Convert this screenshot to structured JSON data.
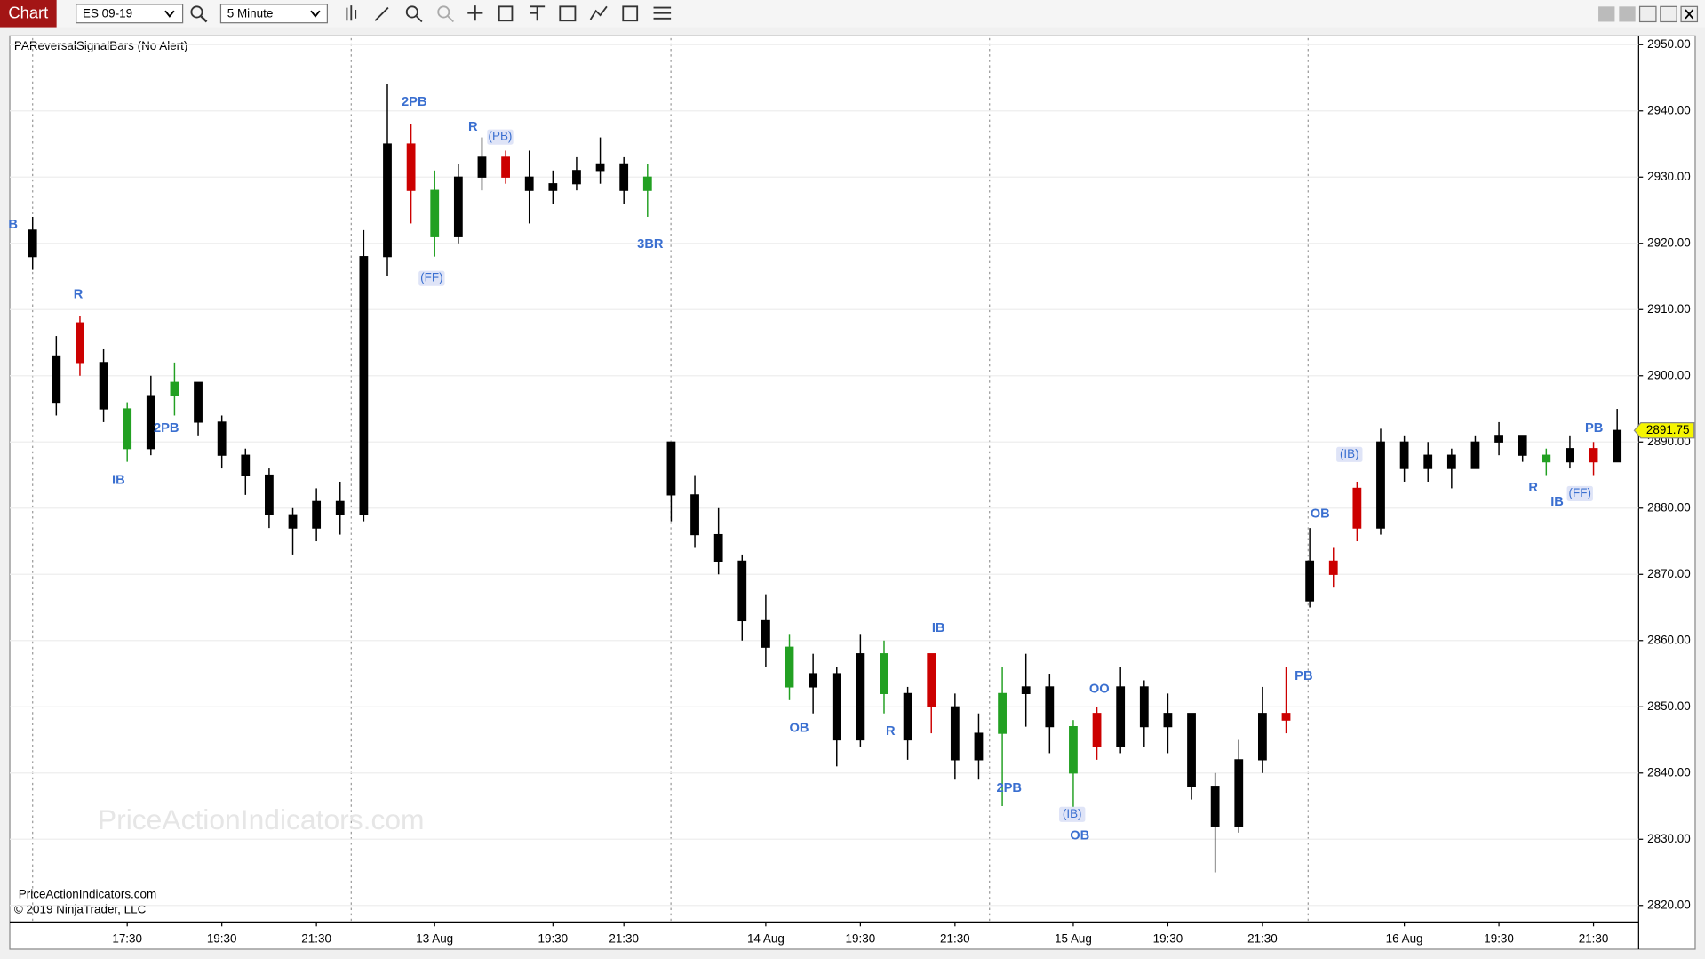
{
  "chart_data": {
    "type": "candlestick",
    "window_title": "Chart",
    "instrument": "ES 09-19",
    "interval": "5 Minute",
    "title": "PAReversalSignalBars (No Alert)",
    "categories": [
      null,
      null,
      null,
      null,
      "17:30",
      null,
      null,
      null,
      "19:30",
      null,
      null,
      null,
      "21:30",
      null,
      null,
      null,
      null,
      "13 Aug",
      null,
      null,
      null,
      null,
      "19:30",
      null,
      null,
      "21:30",
      null,
      null,
      null,
      null,
      null,
      "14 Aug",
      null,
      null,
      null,
      "19:30",
      null,
      null,
      null,
      "21:30",
      null,
      null,
      null,
      null,
      "15 Aug",
      null,
      null,
      null,
      "19:30",
      null,
      null,
      null,
      "21:30",
      null,
      null,
      null,
      null,
      null,
      "16 Aug",
      null,
      null,
      null,
      "19:30",
      null,
      null,
      null,
      "21:30",
      null
    ],
    "open": [
      2922,
      2903,
      2908,
      2902,
      2895,
      2889,
      2897,
      2899,
      2893,
      2888,
      2885,
      2879,
      2877,
      2881,
      2879,
      2918,
      2935,
      2928,
      2921,
      2930,
      2933,
      2930,
      2928,
      2929,
      2931,
      2932,
      2928,
      2890,
      2882,
      2876,
      2872,
      2863,
      2859,
      2853,
      2855,
      2845,
      2858,
      2852,
      2858,
      2850,
      2842,
      2846,
      2852,
      2853,
      2847,
      2849,
      2844,
      2853,
      2847,
      2849,
      2838,
      2832,
      2842,
      2849,
      2866,
      2872,
      2883,
      2877,
      2890,
      2886,
      2888,
      2886,
      2890,
      2891,
      2888,
      2887,
      2889,
      2887
    ],
    "high": [
      2924,
      2906,
      2909,
      2904,
      2896,
      2900,
      2902,
      2899,
      2894,
      2889,
      2886,
      2880,
      2883,
      2884,
      2922,
      2944,
      2938,
      2931,
      2932,
      2936,
      2934,
      2934,
      2931,
      2933,
      2936,
      2933,
      2932,
      2890,
      2885,
      2880,
      2873,
      2867,
      2861,
      2858,
      2856,
      2861,
      2860,
      2853,
      2858,
      2852,
      2849,
      2856,
      2858,
      2855,
      2848,
      2850,
      2856,
      2854,
      2852,
      2849,
      2840,
      2845,
      2853,
      2856,
      2877,
      2874,
      2884,
      2892,
      2891,
      2890,
      2889,
      2891,
      2893,
      2891,
      2889,
      2891,
      2890,
      2895
    ],
    "low": [
      2916,
      2894,
      2900,
      2893,
      2887,
      2888,
      2894,
      2891,
      2886,
      2882,
      2877,
      2873,
      2875,
      2876,
      2878,
      2915,
      2923,
      2918,
      2920,
      2928,
      2929,
      2923,
      2926,
      2928,
      2929,
      2926,
      2924,
      2878,
      2874,
      2870,
      2860,
      2856,
      2851,
      2849,
      2841,
      2844,
      2849,
      2842,
      2846,
      2839,
      2839,
      2835,
      2847,
      2843,
      2834,
      2842,
      2843,
      2844,
      2843,
      2836,
      2825,
      2831,
      2840,
      2846,
      2865,
      2868,
      2875,
      2876,
      2884,
      2884,
      2883,
      2886,
      2888,
      2887,
      2885,
      2886,
      2885,
      2887
    ],
    "close": [
      2918,
      2896,
      2902,
      2895,
      2889,
      2897,
      2899,
      2893,
      2888,
      2885,
      2879,
      2877,
      2881,
      2879,
      2918,
      2935,
      2928,
      2921,
      2930,
      2933,
      2930,
      2928,
      2929,
      2931,
      2932,
      2928,
      2930,
      2882,
      2876,
      2872,
      2863,
      2859,
      2853,
      2855,
      2845,
      2858,
      2852,
      2845,
      2850,
      2842,
      2846,
      2852,
      2853,
      2847,
      2840,
      2844,
      2853,
      2847,
      2849,
      2838,
      2832,
      2842,
      2849,
      2848,
      2872,
      2870,
      2877,
      2890,
      2886,
      2888,
      2886,
      2890,
      2891,
      2888,
      2887,
      2889,
      2887,
      2891.75
    ],
    "colors": [
      "#000000",
      "#000000",
      "#cc0000",
      "#000000",
      "#22a022",
      "#000000",
      "#22a022",
      "#000000",
      "#000000",
      "#000000",
      "#000000",
      "#000000",
      "#000000",
      "#000000",
      "#000000",
      "#000000",
      "#cc0000",
      "#22a022",
      "#000000",
      "#000000",
      "#cc0000",
      "#000000",
      "#000000",
      "#000000",
      "#000000",
      "#000000",
      "#22a022",
      "#000000",
      "#000000",
      "#000000",
      "#000000",
      "#000000",
      "#22a022",
      "#000000",
      "#000000",
      "#000000",
      "#22a022",
      "#000000",
      "#cc0000",
      "#000000",
      "#000000",
      "#22a022",
      "#000000",
      "#000000",
      "#22a022",
      "#cc0000",
      "#000000",
      "#000000",
      "#000000",
      "#000000",
      "#000000",
      "#000000",
      "#000000",
      "#cc0000",
      "#000000",
      "#cc0000",
      "#cc0000",
      "#000000",
      "#000000",
      "#000000",
      "#000000",
      "#000000",
      "#000000",
      "#000000",
      "#22a022",
      "#000000",
      "#cc0000",
      "#000000"
    ],
    "ylim": [
      2817.5,
      2951
    ],
    "yticks": [
      {
        "value": 2820,
        "label": "2820.00"
      },
      {
        "value": 2830,
        "label": "2830.00"
      },
      {
        "value": 2840,
        "label": "2840.00"
      },
      {
        "value": 2850,
        "label": "2850.00"
      },
      {
        "value": 2860,
        "label": "2860.00"
      },
      {
        "value": 2870,
        "label": "2870.00"
      },
      {
        "value": 2880,
        "label": "2880.00"
      },
      {
        "value": 2890,
        "label": "2890.00"
      },
      {
        "value": 2900,
        "label": "2900.00"
      },
      {
        "value": 2910,
        "label": "2910.00"
      },
      {
        "value": 2920,
        "label": "2920.00"
      },
      {
        "value": 2930,
        "label": "2930.00"
      },
      {
        "value": 2940,
        "label": "2940.00"
      },
      {
        "value": 2950,
        "label": "2950.00"
      }
    ],
    "annotations": [
      "B",
      "R",
      "IB",
      "2PB",
      "2PB",
      "R",
      "(PB)",
      "(FF)",
      "3BR",
      "OB",
      "R",
      "IB",
      "2PB",
      "OO",
      "(IB)",
      "OB",
      "PB",
      "OB",
      "(IB)",
      "PB",
      "R",
      "IB",
      "(FF)"
    ],
    "watermark": "PriceActionIndicators.com",
    "footer": [
      "PriceActionIndicators.com",
      "© 2019 NinjaTrader, LLC"
    ]
  }
}
